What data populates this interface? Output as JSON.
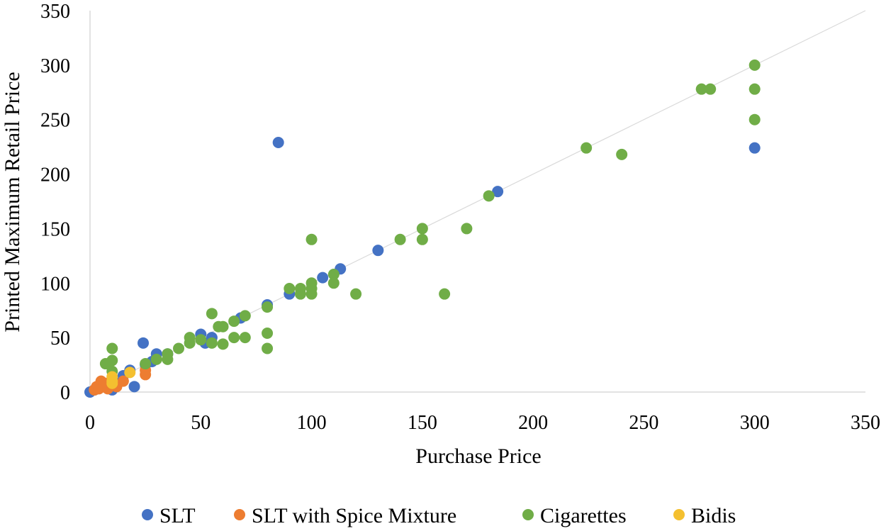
{
  "chart_data": {
    "type": "scatter",
    "xlabel": "Purchase Price",
    "ylabel": "Printed Maximum Retail Price",
    "xlim": [
      0,
      350
    ],
    "ylim": [
      0,
      350
    ],
    "xticks": [
      0,
      50,
      100,
      150,
      200,
      250,
      300,
      350
    ],
    "yticks": [
      0,
      50,
      100,
      150,
      200,
      250,
      300,
      350
    ],
    "grid": false,
    "legend_position": "bottom",
    "reference_line": {
      "from": [
        0,
        0
      ],
      "to": [
        350,
        350
      ],
      "color": "#d9d9d9"
    },
    "series": [
      {
        "name": "SLT",
        "color": "#4472c4",
        "points": [
          [
            0,
            0
          ],
          [
            2,
            2
          ],
          [
            3,
            3
          ],
          [
            5,
            5
          ],
          [
            6,
            8
          ],
          [
            8,
            5
          ],
          [
            10,
            2
          ],
          [
            12,
            8
          ],
          [
            15,
            15
          ],
          [
            18,
            20
          ],
          [
            20,
            5
          ],
          [
            24,
            45
          ],
          [
            25,
            25
          ],
          [
            28,
            28
          ],
          [
            30,
            35
          ],
          [
            35,
            35
          ],
          [
            50,
            53
          ],
          [
            52,
            45
          ],
          [
            55,
            50
          ],
          [
            68,
            68
          ],
          [
            80,
            80
          ],
          [
            85,
            229
          ],
          [
            90,
            90
          ],
          [
            105,
            105
          ],
          [
            113,
            113
          ],
          [
            130,
            130
          ],
          [
            184,
            184
          ],
          [
            300,
            224
          ]
        ]
      },
      {
        "name": "SLT with Spice Mixture",
        "color": "#ed7d31",
        "points": [
          [
            2,
            2
          ],
          [
            3,
            5
          ],
          [
            4,
            3
          ],
          [
            5,
            10
          ],
          [
            6,
            5
          ],
          [
            7,
            8
          ],
          [
            8,
            3
          ],
          [
            10,
            10
          ],
          [
            12,
            5
          ],
          [
            15,
            10
          ],
          [
            25,
            16
          ],
          [
            25,
            20
          ]
        ]
      },
      {
        "name": "Cigarettes",
        "color": "#70ad47",
        "points": [
          [
            7,
            26
          ],
          [
            10,
            40
          ],
          [
            10,
            29
          ],
          [
            10,
            19
          ],
          [
            25,
            26
          ],
          [
            30,
            30
          ],
          [
            35,
            30
          ],
          [
            35,
            35
          ],
          [
            40,
            40
          ],
          [
            45,
            45
          ],
          [
            45,
            50
          ],
          [
            50,
            48
          ],
          [
            55,
            45
          ],
          [
            55,
            72
          ],
          [
            58,
            60
          ],
          [
            60,
            60
          ],
          [
            60,
            44
          ],
          [
            65,
            65
          ],
          [
            65,
            50
          ],
          [
            70,
            70
          ],
          [
            70,
            50
          ],
          [
            80,
            78
          ],
          [
            80,
            54
          ],
          [
            80,
            40
          ],
          [
            90,
            95
          ],
          [
            95,
            95
          ],
          [
            95,
            90
          ],
          [
            100,
            100
          ],
          [
            100,
            95
          ],
          [
            100,
            90
          ],
          [
            100,
            140
          ],
          [
            110,
            108
          ],
          [
            110,
            100
          ],
          [
            120,
            90
          ],
          [
            140,
            140
          ],
          [
            150,
            150
          ],
          [
            150,
            140
          ],
          [
            160,
            90
          ],
          [
            170,
            150
          ],
          [
            180,
            180
          ],
          [
            224,
            224
          ],
          [
            240,
            218
          ],
          [
            276,
            278
          ],
          [
            280,
            278
          ],
          [
            300,
            300
          ],
          [
            300,
            278
          ],
          [
            300,
            250
          ]
        ]
      },
      {
        "name": "Bidis",
        "color": "#f4c030",
        "points": [
          [
            10,
            14
          ],
          [
            10,
            10
          ],
          [
            10,
            8
          ],
          [
            18,
            18
          ]
        ]
      }
    ]
  }
}
